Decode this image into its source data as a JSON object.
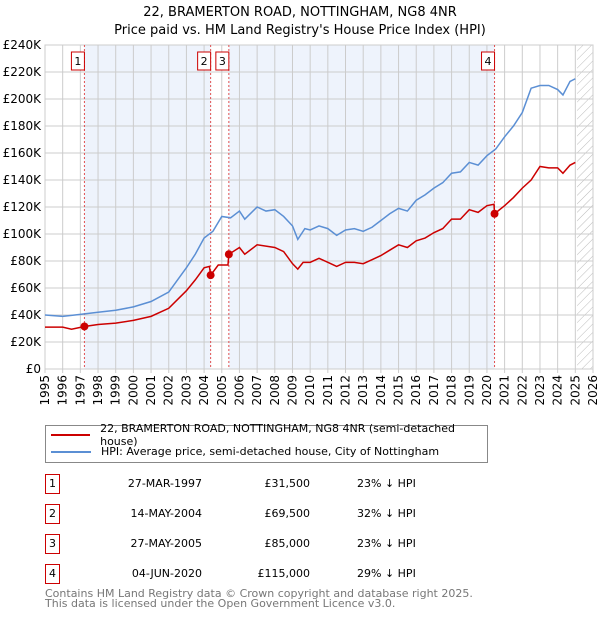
{
  "chart_data": {
    "type": "line",
    "title": [
      "22, BRAMERTON ROAD, NOTTINGHAM, NG8 4NR",
      "Price paid vs. HM Land Registry's House Price Index (HPI)"
    ],
    "xlim": [
      1995,
      2026
    ],
    "ylim": [
      0,
      240000
    ],
    "yticks": [
      "£0",
      "£20K",
      "£40K",
      "£60K",
      "£80K",
      "£100K",
      "£120K",
      "£140K",
      "£160K",
      "£180K",
      "£200K",
      "£220K",
      "£240K"
    ],
    "xticks": [
      "1995",
      "1996",
      "1997",
      "1998",
      "1999",
      "2000",
      "2001",
      "2002",
      "2003",
      "2004",
      "2005",
      "2006",
      "2007",
      "2008",
      "2009",
      "2010",
      "2011",
      "2012",
      "2013",
      "2014",
      "2015",
      "2016",
      "2017",
      "2018",
      "2019",
      "2020",
      "2021",
      "2022",
      "2023",
      "2024",
      "2025",
      "2026"
    ],
    "series": [
      {
        "name": "22, BRAMERTON ROAD, NOTTINGHAM, NG8 4NR (semi-detached house)",
        "color": "#cc0000",
        "points": [
          [
            1995,
            31
          ],
          [
            1996,
            31
          ],
          [
            1996.5,
            29.5
          ],
          [
            1997.23,
            31.5
          ],
          [
            1998,
            33
          ],
          [
            1999,
            34
          ],
          [
            2000,
            36
          ],
          [
            2001,
            39
          ],
          [
            2002,
            45
          ],
          [
            2003,
            58
          ],
          [
            2003.5,
            66
          ],
          [
            2004,
            75
          ],
          [
            2004.3,
            76
          ],
          [
            2004.37,
            69.5
          ],
          [
            2004.8,
            77
          ],
          [
            2005.35,
            77
          ],
          [
            2005.4,
            85
          ],
          [
            2006,
            90
          ],
          [
            2006.3,
            85
          ],
          [
            2007,
            92
          ],
          [
            2008,
            90
          ],
          [
            2008.5,
            87
          ],
          [
            2009,
            78
          ],
          [
            2009.3,
            74
          ],
          [
            2009.6,
            79
          ],
          [
            2010,
            79
          ],
          [
            2010.5,
            82
          ],
          [
            2011,
            79
          ],
          [
            2011.5,
            76
          ],
          [
            2012,
            79
          ],
          [
            2012.5,
            79
          ],
          [
            2013,
            78
          ],
          [
            2013.5,
            81
          ],
          [
            2014,
            84
          ],
          [
            2014.5,
            88
          ],
          [
            2015,
            92
          ],
          [
            2015.5,
            90
          ],
          [
            2016,
            95
          ],
          [
            2016.5,
            97
          ],
          [
            2017,
            101
          ],
          [
            2017.5,
            104
          ],
          [
            2018,
            111
          ],
          [
            2018.5,
            111
          ],
          [
            2019,
            118
          ],
          [
            2019.5,
            116
          ],
          [
            2020,
            121
          ],
          [
            2020.4,
            122
          ],
          [
            2020.43,
            115
          ],
          [
            2021,
            121
          ],
          [
            2021.5,
            127
          ],
          [
            2022,
            134
          ],
          [
            2022.5,
            140
          ],
          [
            2023,
            150
          ],
          [
            2023.5,
            149
          ],
          [
            2024,
            149
          ],
          [
            2024.3,
            145
          ],
          [
            2024.7,
            151
          ],
          [
            2025,
            153
          ]
        ]
      },
      {
        "name": "HPI: Average price, semi-detached house, City of Nottingham",
        "color": "#5b8fd4",
        "points": [
          [
            1995,
            40
          ],
          [
            1996,
            39
          ],
          [
            1997,
            40.5
          ],
          [
            1998,
            42
          ],
          [
            1999,
            43.5
          ],
          [
            2000,
            46
          ],
          [
            2001,
            50
          ],
          [
            2002,
            57
          ],
          [
            2003,
            75
          ],
          [
            2003.5,
            85
          ],
          [
            2004,
            97
          ],
          [
            2004.5,
            102
          ],
          [
            2005,
            113
          ],
          [
            2005.5,
            112
          ],
          [
            2006,
            117
          ],
          [
            2006.3,
            111
          ],
          [
            2007,
            120
          ],
          [
            2007.5,
            117
          ],
          [
            2008,
            118
          ],
          [
            2008.5,
            113
          ],
          [
            2009,
            106
          ],
          [
            2009.3,
            96
          ],
          [
            2009.7,
            104
          ],
          [
            2010,
            103
          ],
          [
            2010.5,
            106
          ],
          [
            2011,
            104
          ],
          [
            2011.5,
            99
          ],
          [
            2012,
            103
          ],
          [
            2012.5,
            104
          ],
          [
            2013,
            102
          ],
          [
            2013.5,
            105
          ],
          [
            2014,
            110
          ],
          [
            2014.5,
            115
          ],
          [
            2015,
            119
          ],
          [
            2015.5,
            117
          ],
          [
            2016,
            125
          ],
          [
            2016.5,
            129
          ],
          [
            2017,
            134
          ],
          [
            2017.5,
            138
          ],
          [
            2018,
            145
          ],
          [
            2018.5,
            146
          ],
          [
            2019,
            153
          ],
          [
            2019.5,
            151
          ],
          [
            2020,
            158
          ],
          [
            2020.5,
            163
          ],
          [
            2021,
            172
          ],
          [
            2021.5,
            180
          ],
          [
            2022,
            190
          ],
          [
            2022.5,
            208
          ],
          [
            2023,
            210
          ],
          [
            2023.5,
            210
          ],
          [
            2024,
            207
          ],
          [
            2024.3,
            203
          ],
          [
            2024.7,
            213
          ],
          [
            2025,
            215
          ]
        ]
      }
    ],
    "sales": [
      {
        "label": "1",
        "x": 1997.23,
        "price": 31.5,
        "date": "27-MAR-1997",
        "price_text": "£31,500",
        "hpi": "23% ↓ HPI"
      },
      {
        "label": "2",
        "x": 2004.37,
        "price": 69.5,
        "date": "14-MAY-2004",
        "price_text": "£69,500",
        "hpi": "32% ↓ HPI"
      },
      {
        "label": "3",
        "x": 2005.4,
        "price": 85,
        "date": "27-MAY-2005",
        "price_text": "£85,000",
        "hpi": "23% ↓ HPI"
      },
      {
        "label": "4",
        "x": 2020.43,
        "price": 115,
        "date": "04-JUN-2020",
        "price_text": "£115,000",
        "hpi": "29% ↓ HPI"
      }
    ],
    "forecast_start": 2025.1
  },
  "footer": [
    "Contains HM Land Registry data © Crown copyright and database right 2025.",
    "This data is licensed under the Open Government Licence v3.0."
  ]
}
